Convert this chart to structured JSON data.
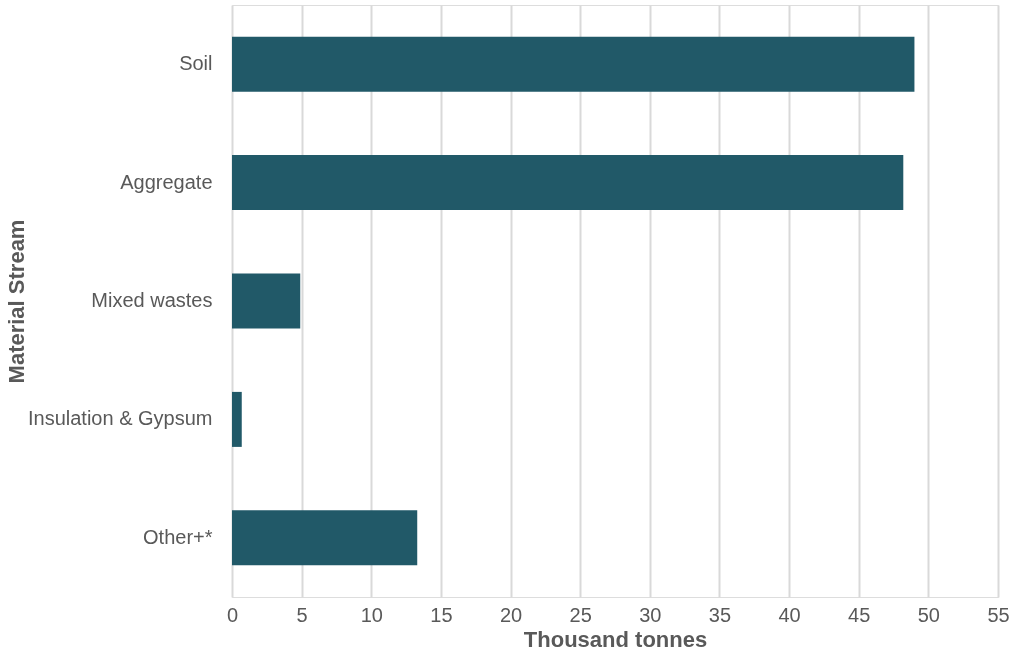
{
  "chart_data": {
    "type": "bar",
    "orientation": "horizontal",
    "xlabel": "Thousand tonnes",
    "ylabel": "Material Stream",
    "categories": [
      "Soil",
      "Aggregate",
      "Mixed wastes",
      "Insulation & Gypsum",
      "Other+*"
    ],
    "values": [
      49.0,
      48.2,
      4.9,
      0.7,
      13.3
    ],
    "color": "#215968",
    "xlim": [
      0,
      55
    ],
    "xticks": [
      0,
      5,
      10,
      15,
      20,
      25,
      30,
      35,
      40,
      45,
      50,
      55
    ],
    "grid": "x"
  }
}
